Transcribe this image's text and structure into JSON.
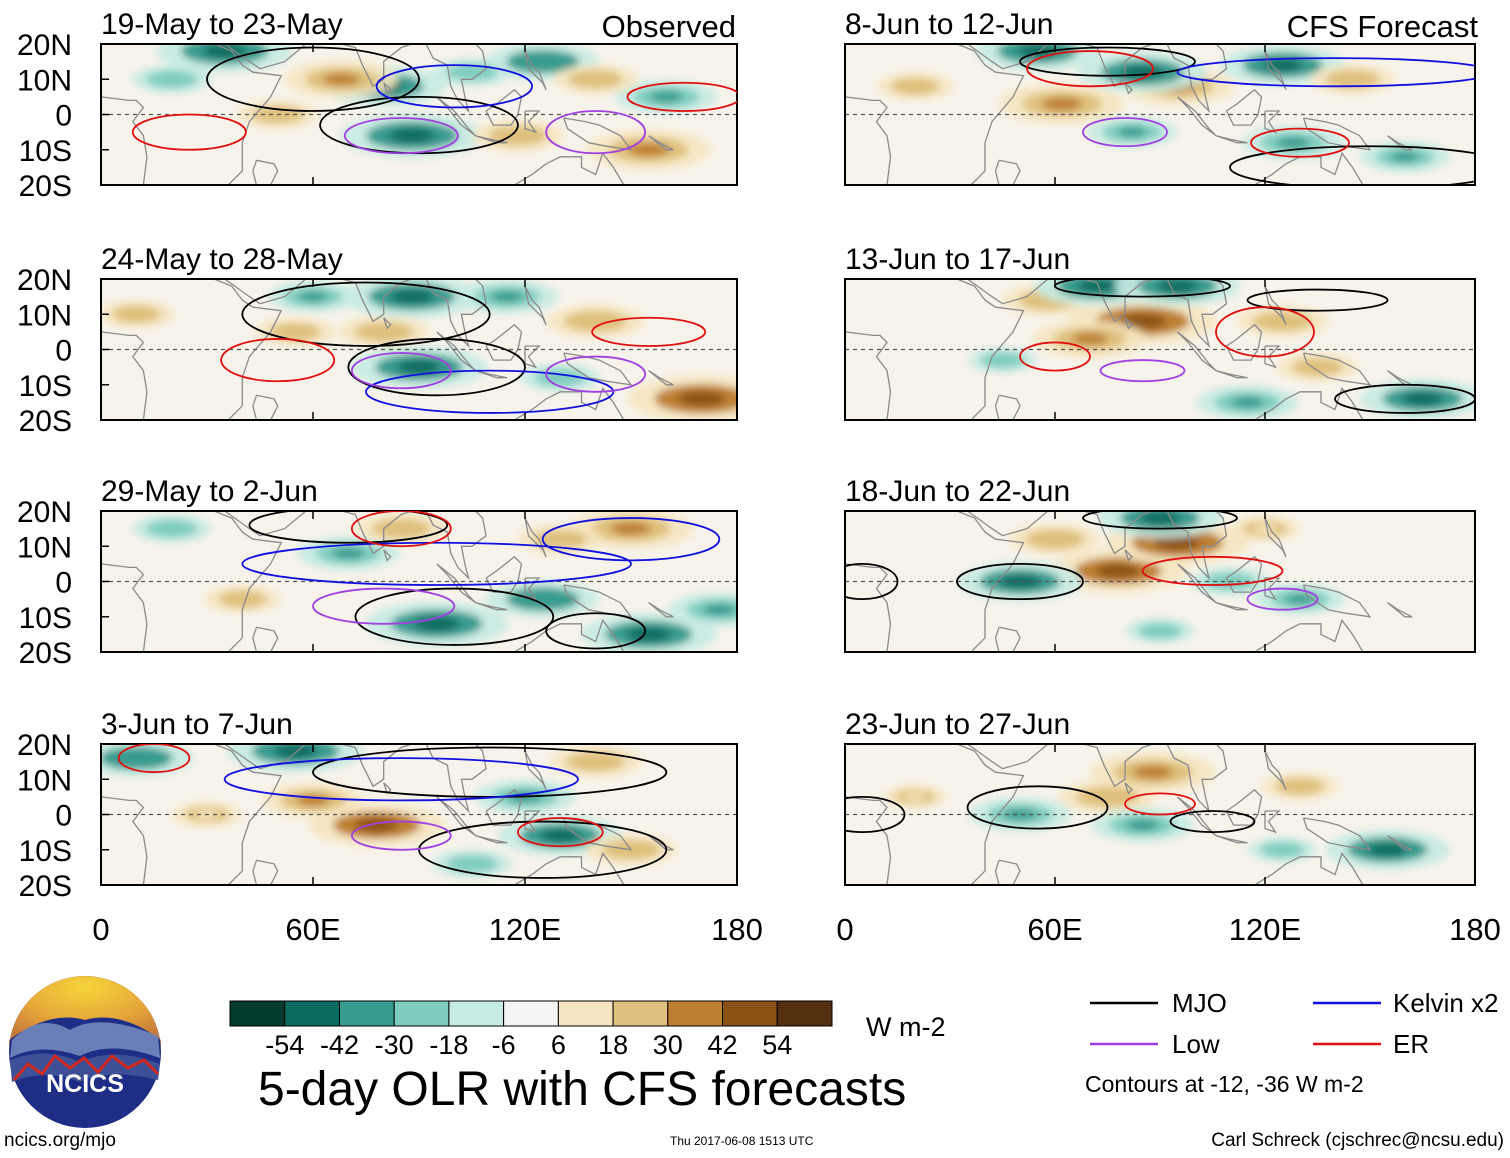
{
  "figure": {
    "title": "5-day OLR with CFS forecasts",
    "observed_label": "Observed",
    "forecast_label": "CFS Forecast",
    "units": "W m-2",
    "logo_text": "NCICS",
    "site": "ncics.org/mjo",
    "timestamp": "Thu 2017-06-08 1513 UTC",
    "author": "Carl Schreck (cjschrec@ncsu.edu)"
  },
  "legend": {
    "entries": [
      {
        "name": "MJO",
        "color": "#000000"
      },
      {
        "name": "Kelvin x2",
        "color": "#1010e0"
      },
      {
        "name": "Low",
        "color": "#a040e0"
      },
      {
        "name": "ER",
        "color": "#e01010"
      }
    ],
    "note": "Contours at -12, -36 W m-2"
  },
  "colorbar": {
    "colors": [
      "#053a2e",
      "#0b6c5f",
      "#379b8f",
      "#7fcdbf",
      "#c5ebe3",
      "#f5f5f5",
      "#f6e5c0",
      "#dfc07c",
      "#be8030",
      "#8b5216",
      "#553010"
    ],
    "tick_labels": [
      "-54",
      "-42",
      "-30",
      "-18",
      "-6",
      "6",
      "18",
      "30",
      "42",
      "54"
    ]
  },
  "chart_data": {
    "type": "heatmap",
    "variable": "OLR anomaly",
    "units": "W m-2",
    "xlabel": "",
    "ylabel": "",
    "x_ticks": [
      "0",
      "60E",
      "120E",
      "180"
    ],
    "y_ticks": [
      "20N",
      "10N",
      "0",
      "10S",
      "20S"
    ],
    "xlim": [
      0,
      180
    ],
    "ylim": [
      -20,
      20
    ],
    "panels": [
      {
        "title": "19-May to 23-May",
        "column": "observed",
        "anomalies": [
          {
            "lon": 35,
            "lat": 18,
            "value": -45
          },
          {
            "lon": 80,
            "lat": 8,
            "value": -40
          },
          {
            "lon": 88,
            "lat": -6,
            "value": -48
          },
          {
            "lon": 125,
            "lat": 15,
            "value": -35
          },
          {
            "lon": 160,
            "lat": 5,
            "value": -30
          },
          {
            "lon": 68,
            "lat": 10,
            "value": 35
          },
          {
            "lon": 155,
            "lat": -10,
            "value": 40
          },
          {
            "lon": 118,
            "lat": -6,
            "value": 25
          },
          {
            "lon": 20,
            "lat": 10,
            "value": -20
          },
          {
            "lon": 140,
            "lat": 10,
            "value": 22
          },
          {
            "lon": 50,
            "lat": 0,
            "value": 20
          },
          {
            "lon": 105,
            "lat": 12,
            "value": -20
          }
        ]
      },
      {
        "title": "24-May to 28-May",
        "column": "observed",
        "anomalies": [
          {
            "lon": 90,
            "lat": -5,
            "value": -45
          },
          {
            "lon": 88,
            "lat": 15,
            "value": -45
          },
          {
            "lon": 115,
            "lat": 15,
            "value": -30
          },
          {
            "lon": 60,
            "lat": 15,
            "value": -25
          },
          {
            "lon": 170,
            "lat": -14,
            "value": 50
          },
          {
            "lon": 140,
            "lat": 8,
            "value": 28
          },
          {
            "lon": 80,
            "lat": 5,
            "value": 25
          },
          {
            "lon": 55,
            "lat": 5,
            "value": 20
          },
          {
            "lon": 130,
            "lat": -8,
            "value": -20
          },
          {
            "lon": 10,
            "lat": 10,
            "value": 18
          }
        ]
      },
      {
        "title": "29-May to 2-Jun",
        "column": "observed",
        "anomalies": [
          {
            "lon": 95,
            "lat": -12,
            "value": -48
          },
          {
            "lon": 155,
            "lat": -15,
            "value": -45
          },
          {
            "lon": 125,
            "lat": -5,
            "value": -35
          },
          {
            "lon": 70,
            "lat": 8,
            "value": -30
          },
          {
            "lon": 175,
            "lat": -8,
            "value": -30
          },
          {
            "lon": 150,
            "lat": 15,
            "value": 40
          },
          {
            "lon": 85,
            "lat": 15,
            "value": 25
          },
          {
            "lon": 40,
            "lat": -5,
            "value": 18
          },
          {
            "lon": 130,
            "lat": 12,
            "value": 22
          },
          {
            "lon": 20,
            "lat": 15,
            "value": -20
          }
        ]
      },
      {
        "title": "3-Jun to 7-Jun",
        "column": "observed",
        "anomalies": [
          {
            "lon": 78,
            "lat": -3,
            "value": 45
          },
          {
            "lon": 60,
            "lat": 4,
            "value": 30
          },
          {
            "lon": 55,
            "lat": 18,
            "value": -45
          },
          {
            "lon": 10,
            "lat": 16,
            "value": -35
          },
          {
            "lon": 130,
            "lat": -6,
            "value": -40
          },
          {
            "lon": 120,
            "lat": 5,
            "value": -30
          },
          {
            "lon": 150,
            "lat": -10,
            "value": 25
          },
          {
            "lon": 140,
            "lat": 15,
            "value": 25
          },
          {
            "lon": 105,
            "lat": -14,
            "value": -20
          },
          {
            "lon": 30,
            "lat": 0,
            "value": 15
          }
        ]
      },
      {
        "title": "8-Jun to 12-Jun",
        "column": "forecast",
        "anomalies": [
          {
            "lon": 62,
            "lat": 3,
            "value": 40
          },
          {
            "lon": 95,
            "lat": 8,
            "value": 35
          },
          {
            "lon": 55,
            "lat": 18,
            "value": -40
          },
          {
            "lon": 85,
            "lat": 12,
            "value": -42
          },
          {
            "lon": 125,
            "lat": 14,
            "value": -40
          },
          {
            "lon": 128,
            "lat": -8,
            "value": -30
          },
          {
            "lon": 82,
            "lat": -5,
            "value": -25
          },
          {
            "lon": 160,
            "lat": -12,
            "value": -25
          },
          {
            "lon": 145,
            "lat": 10,
            "value": 22
          },
          {
            "lon": 20,
            "lat": 8,
            "value": 18
          }
        ]
      },
      {
        "title": "13-Jun to 17-Jun",
        "column": "forecast",
        "anomalies": [
          {
            "lon": 85,
            "lat": 8,
            "value": 50
          },
          {
            "lon": 70,
            "lat": 3,
            "value": 35
          },
          {
            "lon": 58,
            "lat": 14,
            "value": 25
          },
          {
            "lon": 72,
            "lat": 18,
            "value": -40
          },
          {
            "lon": 95,
            "lat": 18,
            "value": -40
          },
          {
            "lon": 115,
            "lat": -15,
            "value": -30
          },
          {
            "lon": 165,
            "lat": -14,
            "value": -40
          },
          {
            "lon": 125,
            "lat": 8,
            "value": 25
          },
          {
            "lon": 135,
            "lat": -5,
            "value": 20
          },
          {
            "lon": 45,
            "lat": -3,
            "value": -15
          }
        ]
      },
      {
        "title": "18-Jun to 22-Jun",
        "column": "forecast",
        "anomalies": [
          {
            "lon": 78,
            "lat": 3,
            "value": 45
          },
          {
            "lon": 95,
            "lat": 11,
            "value": 48
          },
          {
            "lon": 60,
            "lat": 12,
            "value": 25
          },
          {
            "lon": 50,
            "lat": 0,
            "value": -40
          },
          {
            "lon": 90,
            "lat": 18,
            "value": -40
          },
          {
            "lon": 110,
            "lat": 0,
            "value": -20
          },
          {
            "lon": 130,
            "lat": -5,
            "value": -25
          },
          {
            "lon": 90,
            "lat": -14,
            "value": -15
          },
          {
            "lon": 120,
            "lat": 15,
            "value": 15
          }
        ]
      },
      {
        "title": "23-Jun to 27-Jun",
        "column": "forecast",
        "anomalies": [
          {
            "lon": 88,
            "lat": 12,
            "value": 40
          },
          {
            "lon": 75,
            "lat": 5,
            "value": 28
          },
          {
            "lon": 50,
            "lat": 0,
            "value": -30
          },
          {
            "lon": 85,
            "lat": -3,
            "value": -30
          },
          {
            "lon": 155,
            "lat": -10,
            "value": -40
          },
          {
            "lon": 130,
            "lat": 8,
            "value": 18
          },
          {
            "lon": 20,
            "lat": 5,
            "value": 12
          },
          {
            "lon": 125,
            "lat": -10,
            "value": -15
          }
        ]
      }
    ]
  }
}
